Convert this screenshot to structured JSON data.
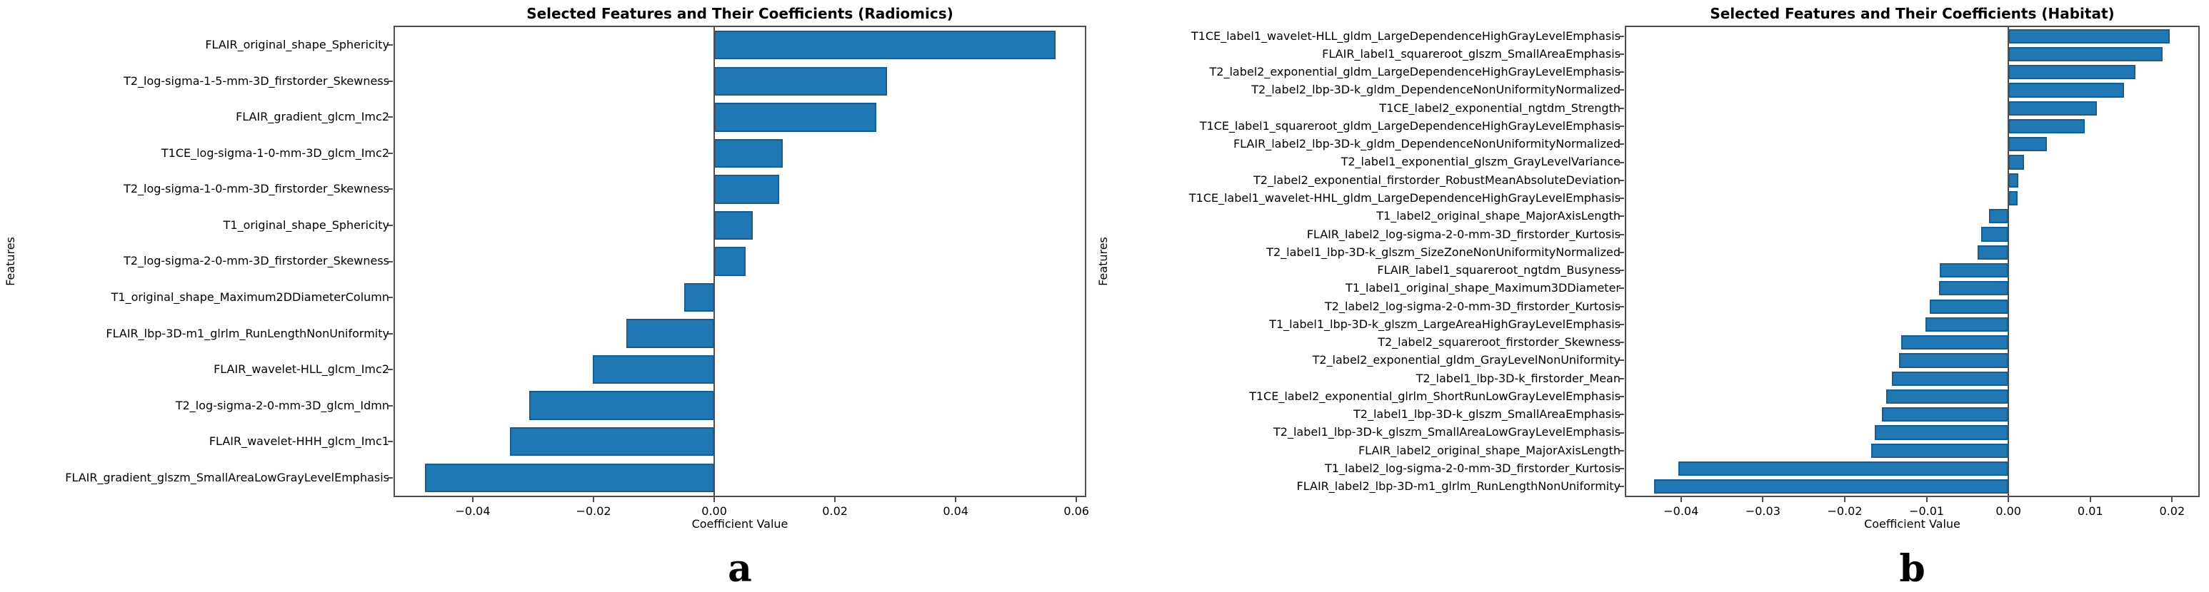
{
  "page": {
    "background": "#ffffff"
  },
  "colors": {
    "bar_fill": "#1f77b4",
    "bar_edge": "#175d8d",
    "spine": "#4d4d4d",
    "zero_line": "#4d4d4d",
    "text": "#000000"
  },
  "chart_data": [
    {
      "type": "bar",
      "orientation": "horizontal",
      "title": "Selected Features and Their Coefficients (Radiomics)",
      "xlabel": "Coefficient Value",
      "ylabel": "Features",
      "caption": "a",
      "grid": false,
      "legend": "none",
      "xlim": [
        -0.0529,
        0.0614
      ],
      "xticks": [
        -0.04,
        -0.02,
        0.0,
        0.02,
        0.04,
        0.06
      ],
      "xtick_labels": [
        "−0.04",
        "−0.02",
        "0.00",
        "0.02",
        "0.04",
        "0.06"
      ],
      "categories": [
        "FLAIR_original_shape_Sphericity",
        "T2_log-sigma-1-5-mm-3D_firstorder_Skewness",
        "FLAIR_gradient_glcm_Imc2",
        "T1CE_log-sigma-1-0-mm-3D_glcm_Imc2",
        "T2_log-sigma-1-0-mm-3D_firstorder_Skewness",
        "T1_original_shape_Sphericity",
        "T2_log-sigma-2-0-mm-3D_firstorder_Skewness",
        "T1_original_shape_Maximum2DDiameterColumn",
        "FLAIR_lbp-3D-m1_glrlm_RunLengthNonUniformity",
        "FLAIR_wavelet-HLL_glcm_Imc2",
        "T2_log-sigma-2-0-mm-3D_glcm_Idmn",
        "FLAIR_wavelet-HHH_glcm_Imc1",
        "FLAIR_gradient_glszm_SmallAreaLowGrayLevelEmphasis"
      ],
      "values": [
        0.0565,
        0.0286,
        0.0269,
        0.0113,
        0.0108,
        0.0064,
        0.0052,
        -0.005,
        -0.0146,
        -0.0201,
        -0.0306,
        -0.0339,
        -0.0479
      ]
    },
    {
      "type": "bar",
      "orientation": "horizontal",
      "title": "Selected Features and Their Coefficients (Habitat)",
      "xlabel": "Coefficient Value",
      "ylabel": "Features",
      "caption": "b",
      "grid": false,
      "legend": "none",
      "xlim": [
        -0.0467,
        0.0232
      ],
      "xticks": [
        -0.04,
        -0.03,
        -0.02,
        -0.01,
        0.0,
        0.01,
        0.02
      ],
      "xtick_labels": [
        "−0.04",
        "−0.03",
        "−0.02",
        "−0.01",
        "0.00",
        "0.01",
        "0.02"
      ],
      "categories": [
        "T1CE_label1_wavelet-HLL_gldm_LargeDependenceHighGrayLevelEmphasis",
        "FLAIR_label1_squareroot_glszm_SmallAreaEmphasis",
        "T2_label2_exponential_gldm_LargeDependenceHighGrayLevelEmphasis",
        "T2_label2_lbp-3D-k_gldm_DependenceNonUniformityNormalized",
        "T1CE_label2_exponential_ngtdm_Strength",
        "T1CE_label1_squareroot_gldm_LargeDependenceHighGrayLevelEmphasis",
        "FLAIR_label2_lbp-3D-k_gldm_DependenceNonUniformityNormalized",
        "T2_label1_exponential_glszm_GrayLevelVariance",
        "T2_label2_exponential_firstorder_RobustMeanAbsoluteDeviation",
        "T1CE_label1_wavelet-HHL_gldm_LargeDependenceHighGrayLevelEmphasis",
        "T1_label2_original_shape_MajorAxisLength",
        "FLAIR_label2_log-sigma-2-0-mm-3D_firstorder_Kurtosis",
        "T2_label1_lbp-3D-k_glszm_SizeZoneNonUniformityNormalized",
        "FLAIR_label1_squareroot_ngtdm_Busyness",
        "T1_label1_original_shape_Maximum3DDiameter",
        "T2_label2_log-sigma-2-0-mm-3D_firstorder_Kurtosis",
        "T1_label1_lbp-3D-k_glszm_LargeAreaHighGrayLevelEmphasis",
        "T2_label2_squareroot_firstorder_Skewness",
        "T2_label2_exponential_gldm_GrayLevelNonUniformity",
        "T2_label1_lbp-3D-k_firstorder_Mean",
        "T1CE_label2_exponential_glrlm_ShortRunLowGrayLevelEmphasis",
        "T2_label1_lbp-3D-k_glszm_SmallAreaEmphasis",
        "T2_label1_lbp-3D-k_glszm_SmallAreaLowGrayLevelEmphasis",
        "FLAIR_label2_original_shape_MajorAxisLength",
        "T1_label2_log-sigma-2-0-mm-3D_firstorder_Kurtosis",
        "FLAIR_label2_lbp-3D-m1_glrlm_RunLengthNonUniformity"
      ],
      "values": [
        0.0197,
        0.0188,
        0.0155,
        0.0141,
        0.0108,
        0.0093,
        0.0047,
        0.0019,
        0.0012,
        0.0011,
        -0.0024,
        -0.0033,
        -0.0038,
        -0.0084,
        -0.0085,
        -0.0096,
        -0.0101,
        -0.0131,
        -0.0134,
        -0.0142,
        -0.0149,
        -0.0155,
        -0.0163,
        -0.0168,
        -0.0403,
        -0.0433
      ]
    }
  ]
}
